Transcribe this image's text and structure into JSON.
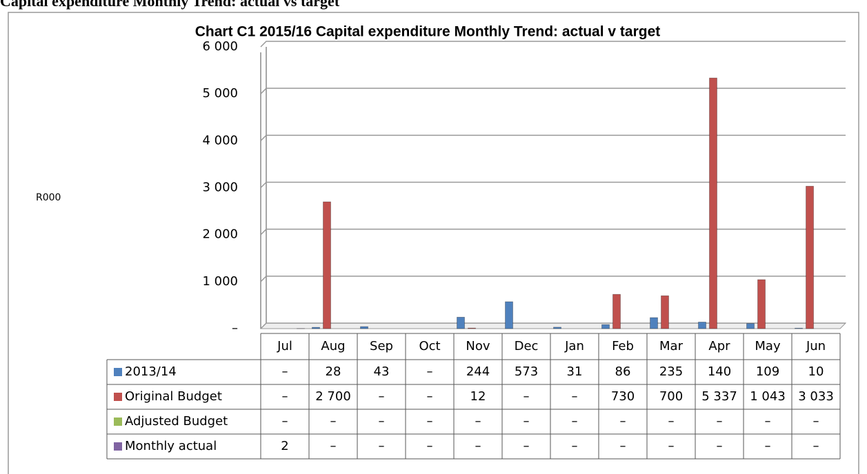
{
  "heading": "Capital expenditure Monthly Trend: actual vs target",
  "chart_data": {
    "type": "bar",
    "title": "Chart C1 2015/16 Capital expenditure Monthly Trend: actual v target",
    "y_label": "R000",
    "categories": [
      "Jul",
      "Aug",
      "Sep",
      "Oct",
      "Nov",
      "Dec",
      "Jan",
      "Feb",
      "Mar",
      "Apr",
      "May",
      "Jun"
    ],
    "series": [
      {
        "name": "2013/14",
        "color": "#4f81bd",
        "values": [
          0,
          28,
          43,
          0,
          244,
          573,
          31,
          86,
          235,
          140,
          109,
          10
        ],
        "value_labels": [
          "–",
          "28",
          "43",
          "–",
          "244",
          "573",
          "31",
          "86",
          "235",
          "140",
          "109",
          "10"
        ]
      },
      {
        "name": "Original Budget",
        "color": "#c0504d",
        "values": [
          0,
          2700,
          0,
          0,
          12,
          0,
          0,
          730,
          700,
          5337,
          1043,
          3033
        ],
        "value_labels": [
          "–",
          "2 700",
          "–",
          "–",
          "12",
          "–",
          "–",
          "730",
          "700",
          "5 337",
          "1 043",
          "3 033"
        ]
      },
      {
        "name": "Adjusted Budget",
        "color": "#9bbb59",
        "values": [
          0,
          0,
          0,
          0,
          0,
          0,
          0,
          0,
          0,
          0,
          0,
          0
        ],
        "value_labels": [
          "–",
          "–",
          "–",
          "–",
          "–",
          "–",
          "–",
          "–",
          "–",
          "–",
          "–",
          "–"
        ]
      },
      {
        "name": "Monthly actual",
        "color": "#8064a2",
        "values": [
          2,
          0,
          0,
          0,
          0,
          0,
          0,
          0,
          0,
          0,
          0,
          0
        ],
        "value_labels": [
          "2",
          "–",
          "–",
          "–",
          "–",
          "–",
          "–",
          "–",
          "–",
          "–",
          "–",
          "–"
        ]
      }
    ],
    "ylim": [
      0,
      6000
    ],
    "yticks": [
      {
        "value": 0,
        "label": "–"
      },
      {
        "value": 1000,
        "label": "1 000"
      },
      {
        "value": 2000,
        "label": "2 000"
      },
      {
        "value": 3000,
        "label": "3 000"
      },
      {
        "value": 4000,
        "label": "4 000"
      },
      {
        "value": 5000,
        "label": "5 000"
      },
      {
        "value": 6000,
        "label": "6 000"
      }
    ],
    "grid": true
  }
}
